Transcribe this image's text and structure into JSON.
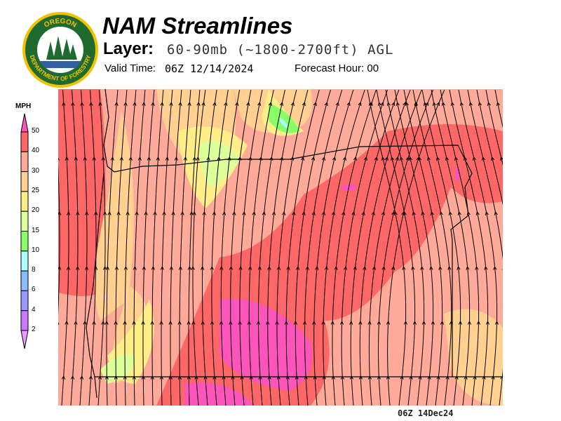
{
  "logo": {
    "top_text": "OREGON",
    "bottom_text": "DEPARTMENT OF FORESTRY"
  },
  "header": {
    "title": "NAM Streamlines",
    "layer_label": "Layer:",
    "layer_value": "60-90mb (~1800-2700ft) AGL",
    "valid_label": "Valid Time:",
    "valid_value": "06Z 12/14/2024",
    "forecast_hour": "Forecast Hour: 00"
  },
  "legend": {
    "unit": "MPH",
    "ticks": [
      "50",
      "40",
      "30",
      "25",
      "20",
      "15",
      "10",
      "8",
      "6",
      "4",
      "2"
    ],
    "colors": [
      "#ff6666",
      "#ffaa99",
      "#ffd090",
      "#ffee88",
      "#ddff99",
      "#88ff66",
      "#aaffff",
      "#88bbff",
      "#9999ff",
      "#cc77ff"
    ],
    "over_color": "#ff55bb",
    "under_color": "#ee99ff"
  },
  "map": {
    "field": "wind speed",
    "base_color": "#ffaa99"
  },
  "footer": "06Z 14Dec24"
}
